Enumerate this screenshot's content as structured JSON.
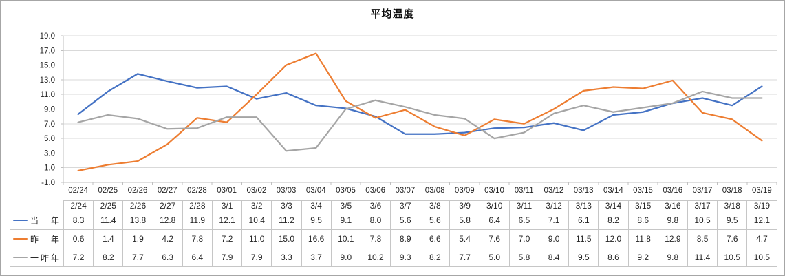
{
  "chart_data": {
    "type": "line",
    "title": "平均温度",
    "xlabel": "",
    "ylabel": "",
    "ylim": [
      -1.0,
      19.0
    ],
    "ytick_step": 2.0,
    "y_tick_labels": [
      "19.0",
      "17.0",
      "15.0",
      "13.0",
      "11.0",
      "9.0",
      "7.0",
      "5.0",
      "3.0",
      "1.0",
      "-1.0"
    ],
    "grid": true,
    "legend_position": "data-table-left",
    "categories": [
      "02/24",
      "02/25",
      "02/26",
      "02/27",
      "02/28",
      "03/01",
      "03/02",
      "03/03",
      "03/04",
      "03/05",
      "03/06",
      "03/07",
      "03/08",
      "03/09",
      "03/10",
      "03/11",
      "03/12",
      "03/13",
      "03/14",
      "03/15",
      "03/16",
      "03/17",
      "03/18",
      "03/19"
    ],
    "series": [
      {
        "name": "当　年",
        "color": "#4472C4",
        "values": [
          8.3,
          11.4,
          13.8,
          12.8,
          11.9,
          12.1,
          10.4,
          11.2,
          9.5,
          9.1,
          8.0,
          5.6,
          5.6,
          5.8,
          6.4,
          6.5,
          7.1,
          6.1,
          8.2,
          8.6,
          9.8,
          10.5,
          9.5,
          12.1
        ]
      },
      {
        "name": "昨　年",
        "color": "#ED7D31",
        "values": [
          0.6,
          1.4,
          1.9,
          4.2,
          7.8,
          7.2,
          11.0,
          15.0,
          16.6,
          10.1,
          7.8,
          8.9,
          6.6,
          5.4,
          7.6,
          7.0,
          9.0,
          11.5,
          12.0,
          11.8,
          12.9,
          8.5,
          7.6,
          4.7
        ]
      },
      {
        "name": "一昨年",
        "color": "#A5A5A5",
        "values": [
          7.2,
          8.2,
          7.7,
          6.3,
          6.4,
          7.9,
          7.9,
          3.3,
          3.7,
          9.0,
          10.2,
          9.3,
          8.2,
          7.7,
          5.0,
          5.8,
          8.4,
          9.5,
          8.6,
          9.2,
          9.8,
          11.4,
          10.5,
          10.5
        ]
      }
    ]
  },
  "table": {
    "columns": [
      "2/24",
      "2/25",
      "2/26",
      "2/27",
      "2/28",
      "3/1",
      "3/2",
      "3/3",
      "3/4",
      "3/5",
      "3/6",
      "3/7",
      "3/8",
      "3/9",
      "3/10",
      "3/11",
      "3/12",
      "3/13",
      "3/14",
      "3/15",
      "3/16",
      "3/17",
      "3/18",
      "3/19"
    ]
  }
}
